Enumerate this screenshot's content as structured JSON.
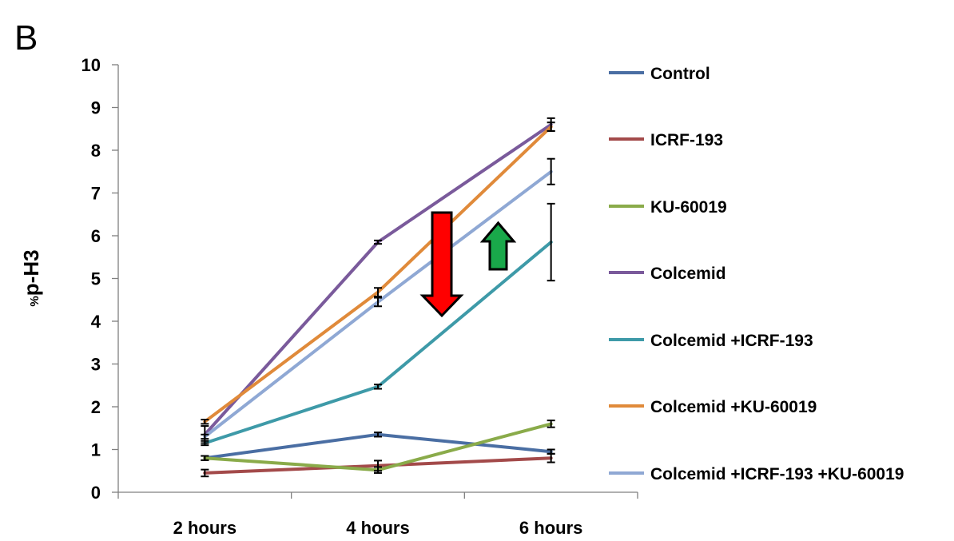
{
  "panel_label": "B",
  "chart_data": {
    "type": "line",
    "title": "",
    "xlabel": "",
    "ylabel_prefix": "%",
    "ylabel": "p-H3",
    "categories": [
      "2 hours",
      "4 hours",
      "6 hours"
    ],
    "ylim": [
      0,
      10
    ],
    "yticks": [
      "0",
      "1",
      "2",
      "3",
      "4",
      "5",
      "6",
      "7",
      "8",
      "9",
      "10"
    ],
    "grid": false,
    "legend_position": "right",
    "series": [
      {
        "name": "Control",
        "color": "#4a6ea3",
        "values": [
          0.8,
          1.35,
          0.95
        ],
        "errors": [
          0.05,
          0.05,
          0.05
        ]
      },
      {
        "name": "ICRF-193",
        "color": "#a34a4a",
        "values": [
          0.45,
          0.62,
          0.8
        ],
        "errors": [
          0.08,
          0.12,
          0.1
        ]
      },
      {
        "name": "KU-60019",
        "color": "#8aab4a",
        "values": [
          0.8,
          0.52,
          1.6
        ],
        "errors": [
          0.05,
          0.07,
          0.08
        ]
      },
      {
        "name": "Colcemid",
        "color": "#7a5a9b",
        "values": [
          1.35,
          5.85,
          8.6
        ],
        "errors": [
          0.2,
          0.04,
          0.15
        ]
      },
      {
        "name": "Colcemid +ICRF-193",
        "color": "#3e9aa8",
        "values": [
          1.15,
          2.47,
          5.85
        ],
        "errors": [
          0.05,
          0.05,
          0.9
        ]
      },
      {
        "name": "Colcemid +KU-60019",
        "color": "#e08a3a",
        "values": [
          1.65,
          4.68,
          8.55
        ],
        "errors": [
          0.05,
          0.1,
          0.1
        ]
      },
      {
        "name": "Colcemid +ICRF-193 +KU-60019",
        "color": "#8fa8d4",
        "values": [
          1.3,
          4.45,
          7.5
        ],
        "errors": [
          0.05,
          0.1,
          0.3
        ]
      }
    ],
    "annotations": [
      {
        "type": "arrow",
        "direction": "down",
        "color": "#ff0000",
        "name": "red-down-arrow"
      },
      {
        "type": "arrow",
        "direction": "up",
        "color": "#19a84a",
        "name": "green-up-arrow"
      }
    ]
  }
}
